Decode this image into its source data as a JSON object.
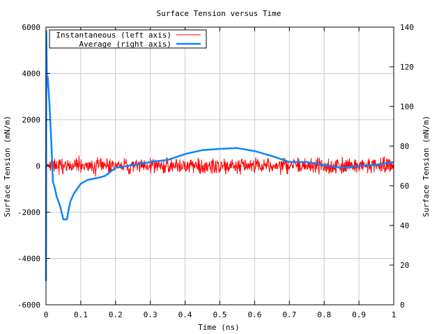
{
  "chart_data": {
    "type": "line",
    "title": "Surface Tension versus Time",
    "xlabel": "Time (ns)",
    "ylabel": "Surface Tension (mN/m)",
    "y2label": "Surface Tension (mN/m)",
    "xlim": [
      0,
      1
    ],
    "ylim": [
      -6000,
      6000
    ],
    "y2lim": [
      0,
      140
    ],
    "grid": true,
    "legend_position": "top-left",
    "xticks": [
      "0",
      "0.1",
      "0.2",
      "0.3",
      "0.4",
      "0.5",
      "0.6",
      "0.7",
      "0.8",
      "0.9",
      "1"
    ],
    "xtick_values": [
      0,
      0.1,
      0.2,
      0.3,
      0.4,
      0.5,
      0.6,
      0.7,
      0.8,
      0.9,
      1
    ],
    "yticks": [
      "-6000",
      "-4000",
      "-2000",
      "0",
      "2000",
      "4000",
      "6000"
    ],
    "ytick_values": [
      -6000,
      -4000,
      -2000,
      0,
      2000,
      4000,
      6000
    ],
    "y2ticks": [
      "0",
      "20",
      "40",
      "60",
      "80",
      "100",
      "120",
      "140"
    ],
    "y2tick_values": [
      0,
      20,
      40,
      60,
      80,
      100,
      120,
      140
    ],
    "series": [
      {
        "name": "Instantaneous (left axis)",
        "axis": "left",
        "color": "#ff0000",
        "description_values": "noise around 0, approx ±400",
        "x_step": 0.0125,
        "values": [
          120,
          -210,
          310,
          -380,
          90,
          260,
          -150,
          340,
          -290,
          60,
          180,
          -340,
          250,
          -120,
          300,
          -260,
          140,
          -60,
          330,
          -310,
          200,
          -180,
          280,
          -90,
          350,
          -240,
          110,
          -330,
          260,
          -150,
          300,
          -200,
          180,
          -280,
          90,
          360,
          -250,
          170,
          -320,
          230,
          -110,
          310,
          -260,
          150,
          -340,
          280,
          -90,
          250,
          -300,
          190,
          -170,
          320,
          -230,
          140,
          -380,
          270,
          -120,
          300,
          -260,
          210,
          -150,
          340,
          -290,
          130,
          -200,
          310,
          -250,
          180,
          -330,
          260,
          -110,
          290,
          -240,
          170,
          -310,
          230,
          -140,
          350,
          -270,
          200,
          -160
        ]
      },
      {
        "name": "Average (right axis)",
        "axis": "right",
        "color": "#0a84ff",
        "x": [
          0,
          0.001,
          0.003,
          0.005,
          0.01,
          0.015,
          0.02,
          0.025,
          0.03,
          0.04,
          0.05,
          0.06,
          0.07,
          0.08,
          0.1,
          0.12,
          0.15,
          0.17,
          0.2,
          0.25,
          0.3,
          0.35,
          0.4,
          0.45,
          0.5,
          0.55,
          0.6,
          0.65,
          0.7,
          0.75,
          0.8,
          0.85,
          0.9,
          0.95,
          1
        ],
        "y": [
          12,
          138,
          110,
          115,
          101,
          83,
          62,
          59,
          55,
          50,
          43,
          43,
          52,
          56,
          61,
          63,
          64,
          65,
          69,
          70.5,
          72,
          73,
          76,
          78,
          78.6,
          79,
          77.5,
          75,
          72,
          72,
          70.5,
          69,
          70,
          70.5,
          72
        ]
      }
    ]
  }
}
